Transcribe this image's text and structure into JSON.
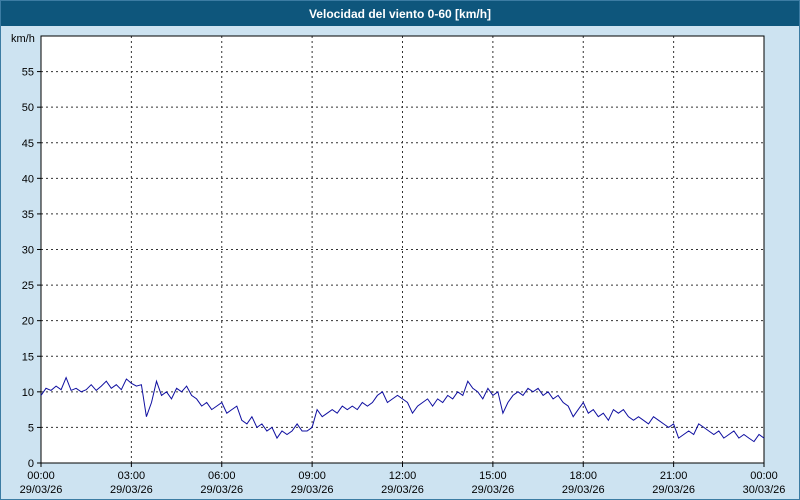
{
  "header": {
    "title": "Velocidad del viento 0-60 [km/h]",
    "bg_color": "#0e567c",
    "fg_color": "#ffffff"
  },
  "chart_data": {
    "type": "line",
    "title": "Velocidad del viento 0-60 [km/h]",
    "ylabel": "km/h",
    "xlabel": "",
    "ylim": [
      0,
      60
    ],
    "xlim": [
      0,
      24
    ],
    "grid": true,
    "legend": "none",
    "background": "#cde3f1",
    "plot_background": "#ffffff",
    "line_color": "#0f0fa0",
    "yticks": [
      0,
      5,
      10,
      15,
      20,
      25,
      30,
      35,
      40,
      45,
      50,
      55
    ],
    "xticks": [
      0,
      3,
      6,
      9,
      12,
      15,
      18,
      21,
      24
    ],
    "xtick_labels": [
      "00:00",
      "03:00",
      "06:00",
      "09:00",
      "12:00",
      "15:00",
      "18:00",
      "21:00",
      "00:00"
    ],
    "xtick_dates": [
      "29/03/26",
      "29/03/26",
      "29/03/26",
      "29/03/26",
      "29/03/26",
      "29/03/26",
      "29/03/26",
      "29/03/26",
      "30/03/26"
    ],
    "x_start": 0,
    "x_step_hours": 0.1666667,
    "series": [
      {
        "name": "Velocidad del viento",
        "values": [
          9.5,
          10.5,
          10.2,
          10.8,
          10.3,
          12,
          10.2,
          10.5,
          10,
          10.3,
          11,
          10.2,
          10.8,
          11.5,
          10.5,
          11,
          10.3,
          11.8,
          11.2,
          10.8,
          11,
          6.5,
          8.5,
          11.5,
          9.5,
          10,
          9,
          10.5,
          10,
          10.8,
          9.5,
          9,
          8,
          8.5,
          7.5,
          8,
          8.5,
          7,
          7.5,
          8,
          6,
          5.5,
          6.5,
          5,
          5.5,
          4.5,
          5,
          3.5,
          4.5,
          4,
          4.5,
          5.5,
          4.5,
          4.5,
          5,
          7.5,
          6.5,
          7,
          7.5,
          7,
          8,
          7.5,
          8,
          7.5,
          8.5,
          8,
          8.5,
          9.5,
          10,
          8.5,
          9,
          9.5,
          9,
          8.5,
          7,
          8,
          8.5,
          9,
          8,
          9,
          8.5,
          9.5,
          9,
          10,
          9.5,
          11.5,
          10.5,
          10,
          9,
          10.5,
          9.5,
          10,
          7,
          8.5,
          9.5,
          10,
          9.5,
          10.5,
          10,
          10.5,
          9.5,
          10,
          9,
          9.5,
          8.5,
          8,
          6.5,
          7.5,
          8.5,
          7,
          7.5,
          6.5,
          7,
          6,
          7.5,
          7,
          7.5,
          6.5,
          6,
          6.5,
          6,
          5.5,
          6.5,
          6,
          5.5,
          5,
          5.5,
          3.5,
          4,
          4.5,
          4,
          5.5,
          5,
          4.5,
          4,
          4.5,
          3.5,
          4,
          4.5,
          3.5,
          4,
          3.5,
          3,
          4,
          3.5
        ]
      }
    ]
  }
}
